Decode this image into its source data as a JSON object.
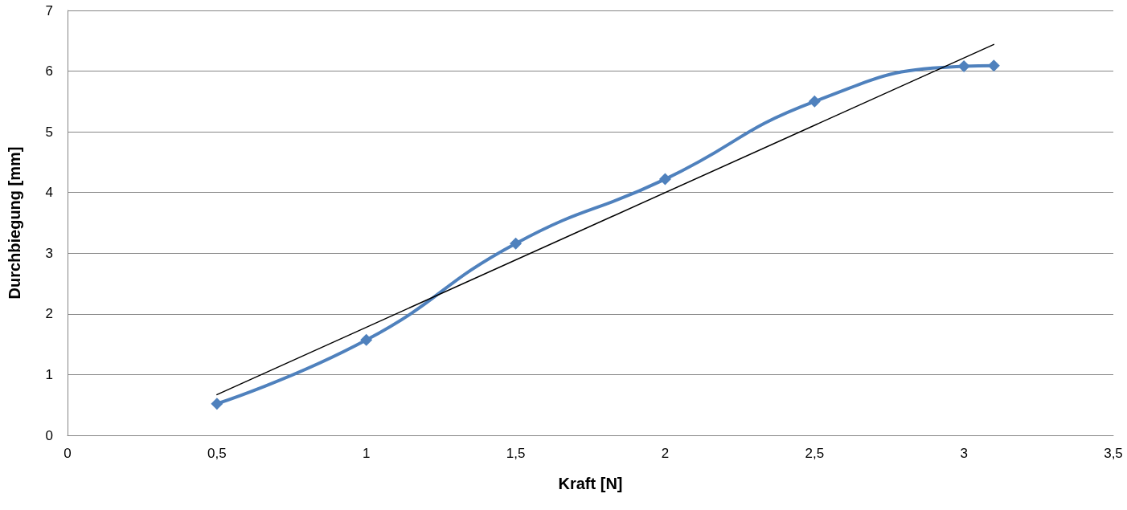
{
  "chart_data": {
    "type": "line",
    "xlabel": "Kraft [N]",
    "ylabel": "Durchbiegung [mm]",
    "series": [
      {
        "color": "#4f81bd",
        "marker": "diamond",
        "x": [
          0.5,
          1,
          1.5,
          2,
          2.5,
          3,
          3.1
        ],
        "values": [
          0.52,
          1.57,
          3.16,
          4.22,
          5.5,
          6.08,
          6.09
        ]
      },
      {
        "color": "#000000",
        "marker": "none",
        "x": [
          0.5,
          3.1
        ],
        "values": [
          0.67,
          6.44
        ]
      }
    ],
    "xlim": [
      0,
      3.5
    ],
    "xticks": [
      0,
      {
        "value": 0.5,
        "label": "0,5"
      },
      1,
      {
        "value": 1.5,
        "label": "1,5"
      },
      2,
      {
        "value": 2.5,
        "label": "2,5"
      },
      3,
      {
        "value": 3.5,
        "label": "3,5"
      }
    ],
    "ylim": [
      0,
      7
    ],
    "yticks": [
      0,
      1,
      2,
      3,
      4,
      5,
      6,
      7
    ],
    "grid": "y"
  }
}
